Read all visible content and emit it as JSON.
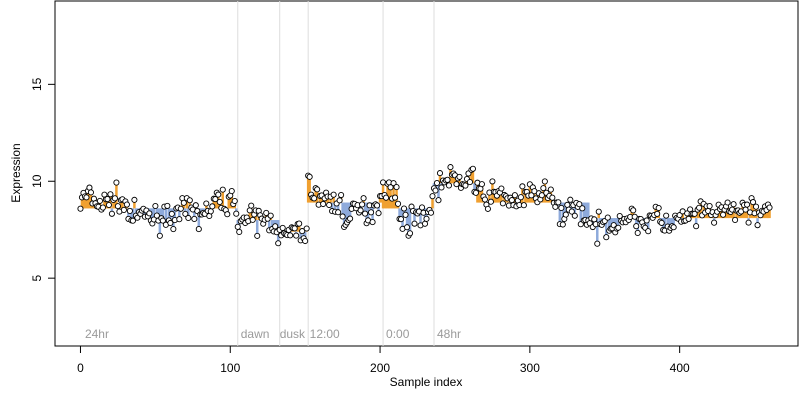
{
  "chart_data": {
    "type": "scatter",
    "title": "",
    "xlabel": "Sample index",
    "ylabel": "Expression",
    "xlim": [
      -17,
      479
    ],
    "ylim": [
      1.5,
      19.3
    ],
    "x_ticks": [
      0,
      100,
      200,
      300,
      400
    ],
    "y_ticks": [
      5,
      10,
      15
    ],
    "grid": false,
    "legend": "none",
    "colors": {
      "point_fill": "#ffffff",
      "point_stroke": "#000000",
      "condition_line": "#dddddd",
      "condition_text": "#9a9a9a",
      "high_residual": "#f0a030",
      "low_residual": "#8eaadb"
    },
    "condition_boundaries": [
      105,
      133,
      152,
      202,
      236
    ],
    "condition_labels": [
      {
        "x": 3,
        "text": "24hr"
      },
      {
        "x": 107,
        "text": "dawn"
      },
      {
        "x": 133,
        "text": "dusk"
      },
      {
        "x": 153,
        "text": "12:00"
      },
      {
        "x": 204,
        "text": "0:00"
      },
      {
        "x": 238,
        "text": "48hr"
      }
    ],
    "condition_means": [
      {
        "x0": 0,
        "x1": 105,
        "y": 8.6
      },
      {
        "x0": 105,
        "x1": 133,
        "y": 8.0
      },
      {
        "x0": 133,
        "x1": 152,
        "y": 7.4
      },
      {
        "x0": 152,
        "x1": 202,
        "y": 8.9
      },
      {
        "x0": 202,
        "x1": 236,
        "y": 8.6
      },
      {
        "x0": 236,
        "x1": 265,
        "y": 9.9
      },
      {
        "x0": 265,
        "x1": 340,
        "y": 8.9
      },
      {
        "x0": 340,
        "x1": 460,
        "y": 8.1
      }
    ],
    "profile": [
      [
        0,
        8.9
      ],
      [
        5,
        9.3
      ],
      [
        10,
        8.9
      ],
      [
        15,
        8.8
      ],
      [
        20,
        9.0
      ],
      [
        25,
        9.1
      ],
      [
        30,
        8.7
      ],
      [
        35,
        8.1
      ],
      [
        40,
        8.2
      ],
      [
        45,
        8.3
      ],
      [
        50,
        8.0
      ],
      [
        55,
        8.2
      ],
      [
        60,
        8.3
      ],
      [
        65,
        8.1
      ],
      [
        70,
        8.5
      ],
      [
        75,
        8.4
      ],
      [
        80,
        8.3
      ],
      [
        85,
        8.4
      ],
      [
        90,
        8.9
      ],
      [
        95,
        9.0
      ],
      [
        100,
        8.9
      ],
      [
        104,
        9.0
      ],
      [
        105,
        7.9
      ],
      [
        110,
        8.0
      ],
      [
        115,
        8.0
      ],
      [
        120,
        8.0
      ],
      [
        125,
        8.0
      ],
      [
        130,
        7.9
      ],
      [
        133,
        7.1
      ],
      [
        138,
        7.2
      ],
      [
        143,
        7.4
      ],
      [
        148,
        7.3
      ],
      [
        151,
        7.5
      ],
      [
        152,
        9.8
      ],
      [
        156,
        9.5
      ],
      [
        160,
        9.1
      ],
      [
        165,
        9.0
      ],
      [
        170,
        8.9
      ],
      [
        174,
        8.7
      ],
      [
        178,
        7.9
      ],
      [
        182,
        8.3
      ],
      [
        186,
        8.6
      ],
      [
        190,
        8.4
      ],
      [
        195,
        8.6
      ],
      [
        200,
        9.1
      ],
      [
        202,
        9.8
      ],
      [
        206,
        9.7
      ],
      [
        210,
        9.3
      ],
      [
        214,
        8.3
      ],
      [
        218,
        7.8
      ],
      [
        222,
        8.0
      ],
      [
        226,
        8.5
      ],
      [
        230,
        8.2
      ],
      [
        235,
        8.6
      ],
      [
        236,
        9.8
      ],
      [
        240,
        9.8
      ],
      [
        244,
        10.0
      ],
      [
        250,
        10.1
      ],
      [
        256,
        10.0
      ],
      [
        262,
        10.3
      ],
      [
        265,
        9.3
      ],
      [
        270,
        9.2
      ],
      [
        276,
        9.3
      ],
      [
        282,
        9.3
      ],
      [
        288,
        9.0
      ],
      [
        294,
        9.0
      ],
      [
        300,
        9.3
      ],
      [
        306,
        9.3
      ],
      [
        310,
        9.5
      ],
      [
        314,
        9.1
      ],
      [
        318,
        8.5
      ],
      [
        322,
        8.3
      ],
      [
        326,
        8.6
      ],
      [
        330,
        8.7
      ],
      [
        334,
        8.5
      ],
      [
        340,
        7.7
      ],
      [
        344,
        7.5
      ],
      [
        348,
        7.6
      ],
      [
        352,
        7.9
      ],
      [
        356,
        7.8
      ],
      [
        360,
        8.0
      ],
      [
        365,
        8.2
      ],
      [
        370,
        8.0
      ],
      [
        375,
        7.9
      ],
      [
        380,
        8.0
      ],
      [
        385,
        8.2
      ],
      [
        390,
        7.8
      ],
      [
        395,
        7.6
      ],
      [
        400,
        8.0
      ],
      [
        405,
        8.1
      ],
      [
        410,
        8.2
      ],
      [
        420,
        8.4
      ],
      [
        430,
        8.4
      ],
      [
        440,
        8.5
      ],
      [
        450,
        8.6
      ],
      [
        455,
        8.4
      ],
      [
        460,
        8.6
      ]
    ],
    "n_points": 461,
    "noise_sd": 0.32
  }
}
